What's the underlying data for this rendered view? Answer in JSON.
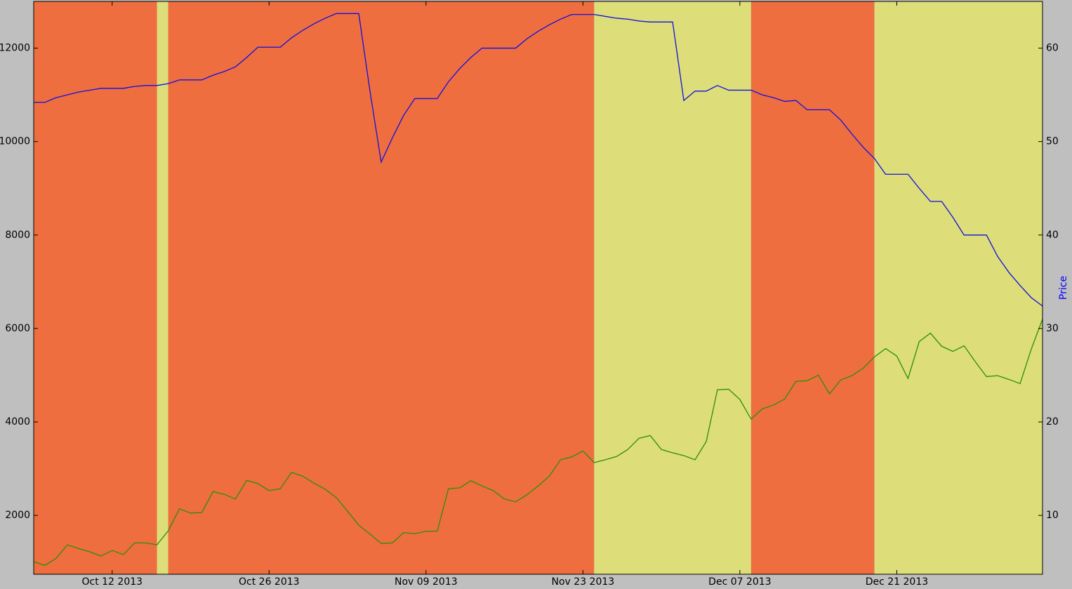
{
  "chart_data": {
    "type": "line",
    "x": [
      "2013-10-05",
      "2013-10-06",
      "2013-10-07",
      "2013-10-08",
      "2013-10-09",
      "2013-10-10",
      "2013-10-11",
      "2013-10-12",
      "2013-10-13",
      "2013-10-14",
      "2013-10-15",
      "2013-10-16",
      "2013-10-17",
      "2013-10-18",
      "2013-10-19",
      "2013-10-20",
      "2013-10-21",
      "2013-10-22",
      "2013-10-23",
      "2013-10-24",
      "2013-10-25",
      "2013-10-26",
      "2013-10-27",
      "2013-10-28",
      "2013-10-29",
      "2013-10-30",
      "2013-10-31",
      "2013-11-01",
      "2013-11-02",
      "2013-11-03",
      "2013-11-04",
      "2013-11-05",
      "2013-11-06",
      "2013-11-07",
      "2013-11-08",
      "2013-11-09",
      "2013-11-10",
      "2013-11-11",
      "2013-11-12",
      "2013-11-13",
      "2013-11-14",
      "2013-11-15",
      "2013-11-16",
      "2013-11-17",
      "2013-11-18",
      "2013-11-19",
      "2013-11-20",
      "2013-11-21",
      "2013-11-22",
      "2013-11-23",
      "2013-11-24",
      "2013-11-25",
      "2013-11-26",
      "2013-11-27",
      "2013-11-28",
      "2013-11-29",
      "2013-11-30",
      "2013-12-01",
      "2013-12-02",
      "2013-12-03",
      "2013-12-04",
      "2013-12-05",
      "2013-12-06",
      "2013-12-07",
      "2013-12-08",
      "2013-12-09",
      "2013-12-10",
      "2013-12-11",
      "2013-12-12",
      "2013-12-13",
      "2013-12-14",
      "2013-12-15",
      "2013-12-16",
      "2013-12-17",
      "2013-12-18",
      "2013-12-19",
      "2013-12-20",
      "2013-12-21",
      "2013-12-22",
      "2013-12-23",
      "2013-12-24",
      "2013-12-25",
      "2013-12-26",
      "2013-12-27",
      "2013-12-28",
      "2013-12-29",
      "2013-12-30",
      "2013-12-31",
      "2014-01-01",
      "2014-01-02",
      "2014-01-03"
    ],
    "series": [
      {
        "color": "#2a9000",
        "values": [
          1010,
          930,
          1080,
          1370,
          1290,
          1220,
          1130,
          1250,
          1160,
          1410,
          1410,
          1370,
          1670,
          2140,
          2050,
          2060,
          2510,
          2450,
          2350,
          2750,
          2680,
          2530,
          2570,
          2920,
          2840,
          2690,
          2560,
          2380,
          2090,
          1790,
          1600,
          1400,
          1410,
          1630,
          1610,
          1660,
          1660,
          2570,
          2590,
          2740,
          2630,
          2530,
          2350,
          2290,
          2440,
          2630,
          2840,
          3190,
          3250,
          3380,
          3130,
          3190,
          3260,
          3410,
          3650,
          3710,
          3410,
          3340,
          3280,
          3190,
          3580,
          4690,
          4700,
          4480,
          4060,
          4280,
          4360,
          4490,
          4870,
          4880,
          5000,
          4600,
          4900,
          4990,
          5150,
          5390,
          5570,
          5410,
          4930,
          5720,
          5900,
          5620,
          5510,
          5630,
          5290,
          4970,
          4990,
          4910,
          4820,
          5560,
          6200
        ]
      },
      {
        "color": "#1010e0",
        "axis": "y2",
        "values": [
          54.2,
          54.2,
          54.7,
          55.0,
          55.3,
          55.5,
          55.7,
          55.7,
          55.7,
          55.9,
          56.0,
          56.0,
          56.2,
          56.6,
          56.6,
          56.6,
          57.1,
          57.5,
          58.0,
          59.0,
          60.1,
          60.1,
          60.1,
          61.1,
          61.9,
          62.6,
          63.2,
          63.7,
          63.7,
          63.7,
          55.4,
          47.8,
          50.4,
          52.8,
          54.6,
          54.6,
          54.6,
          56.4,
          57.8,
          59.0,
          60.0,
          60.0,
          60.0,
          60.0,
          61.0,
          61.8,
          62.5,
          63.1,
          63.6,
          63.6,
          63.6,
          63.4,
          63.2,
          63.1,
          62.9,
          62.8,
          62.8,
          62.8,
          54.4,
          55.4,
          55.4,
          56.0,
          55.5,
          55.5,
          55.5,
          55.0,
          54.7,
          54.3,
          54.4,
          53.4,
          53.4,
          53.4,
          52.3,
          50.8,
          49.4,
          48.2,
          46.5,
          46.5,
          46.5,
          45.0,
          43.6,
          43.6,
          41.9,
          40.0,
          40.0,
          40.0,
          37.7,
          36.0,
          34.6,
          33.3,
          32.4
        ]
      }
    ],
    "spans": [
      {
        "start": "2013-10-05",
        "end": "2013-10-16",
        "color": "#ee6e40"
      },
      {
        "start": "2013-10-16",
        "end": "2013-10-17",
        "color": "#dddd7a"
      },
      {
        "start": "2013-10-17",
        "end": "2013-11-24",
        "color": "#ee6e40"
      },
      {
        "start": "2013-11-24",
        "end": "2013-12-08",
        "color": "#dddd7a"
      },
      {
        "start": "2013-12-08",
        "end": "2013-12-19",
        "color": "#ee6e40"
      },
      {
        "start": "2013-12-19",
        "end": "2014-01-03",
        "color": "#dddd7a"
      }
    ],
    "xlim": [
      "2013-10-05",
      "2014-01-03"
    ],
    "xticks": [
      {
        "value": "2013-10-12",
        "label": "Oct 12 2013"
      },
      {
        "value": "2013-10-26",
        "label": "Oct 26 2013"
      },
      {
        "value": "2013-11-09",
        "label": "Nov 09 2013"
      },
      {
        "value": "2013-11-23",
        "label": "Nov 23 2013"
      },
      {
        "value": "2013-12-07",
        "label": "Dec 07 2013"
      },
      {
        "value": "2013-12-21",
        "label": "Dec 21 2013"
      }
    ],
    "ylim": [
      740,
      13000
    ],
    "yticks": [
      2000,
      4000,
      6000,
      8000,
      10000,
      12000
    ],
    "y2lim": [
      3.7,
      65
    ],
    "y2ticks": [
      10,
      20,
      30,
      40,
      50,
      60
    ],
    "y2label": "Price",
    "y2label_color": "#0000ff"
  }
}
